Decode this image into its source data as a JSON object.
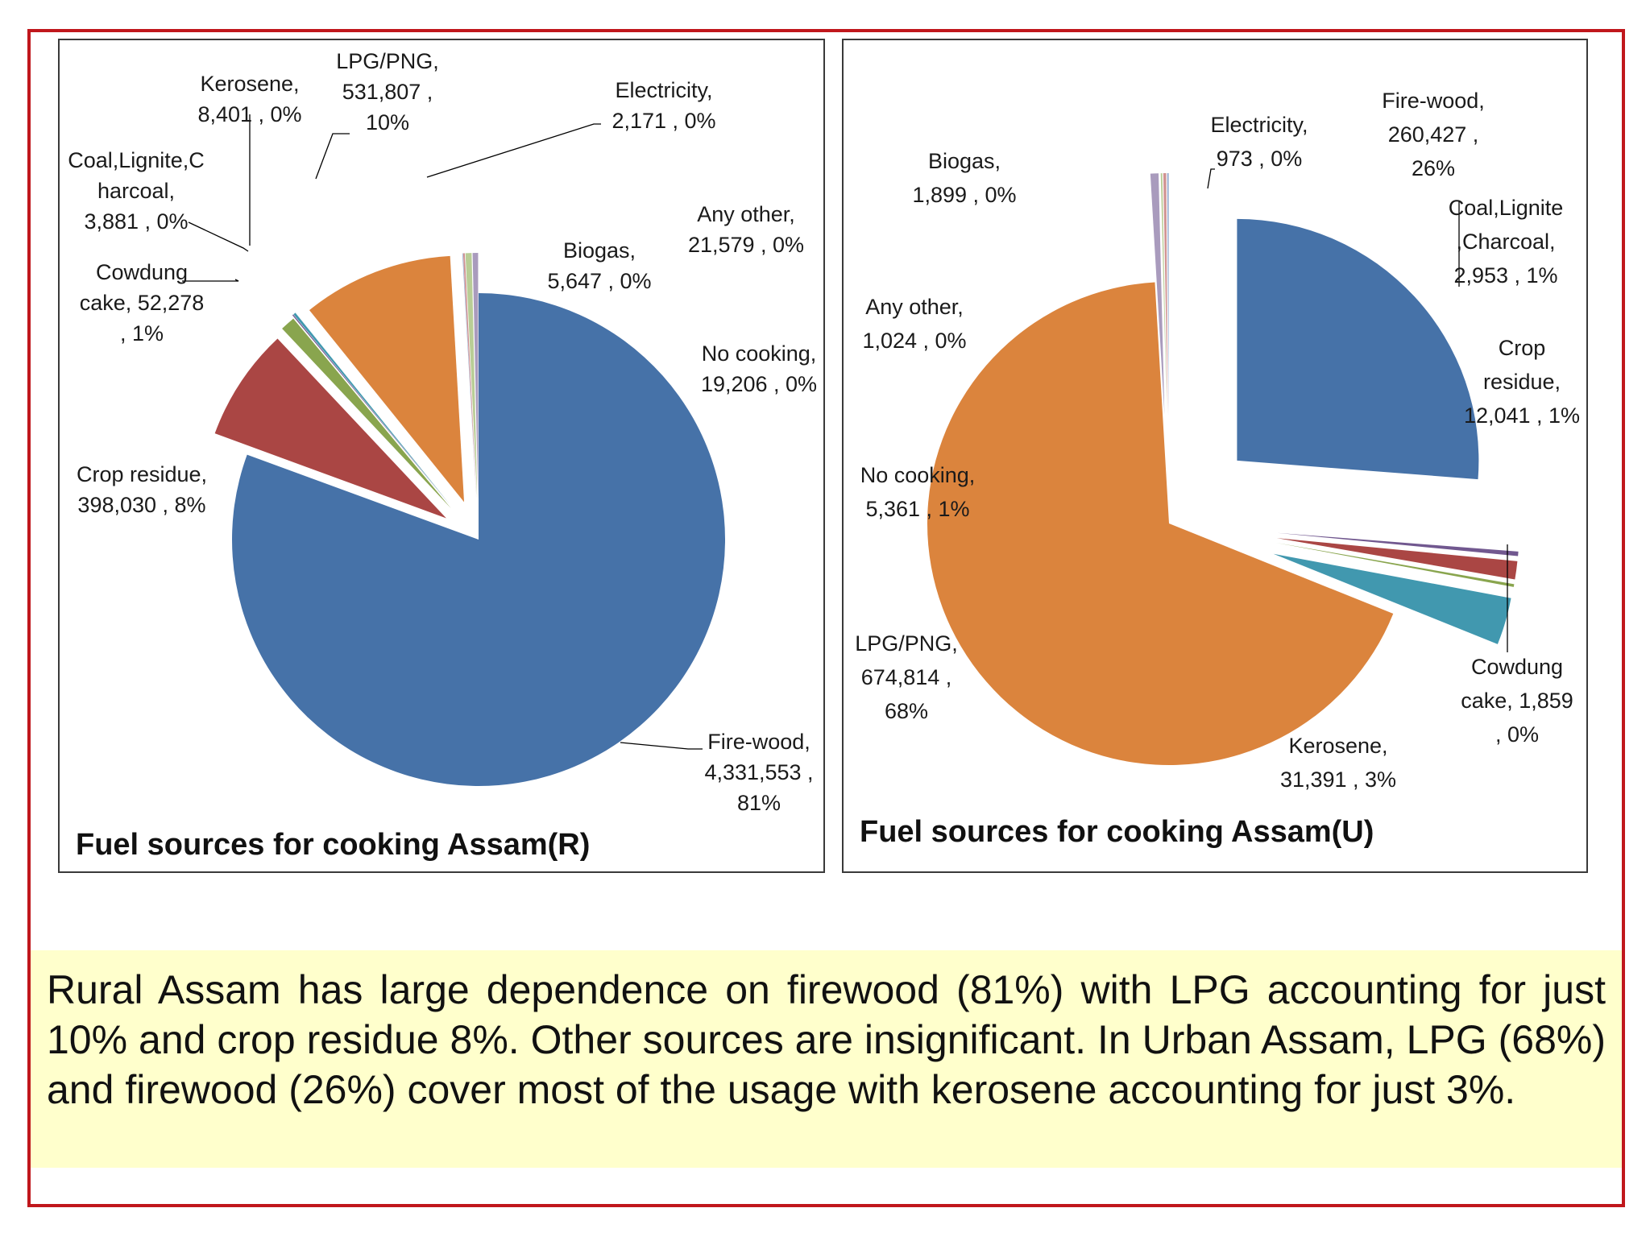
{
  "chart_data": [
    {
      "type": "pie",
      "title": "Fuel sources for cooking Assam(R)",
      "slices": [
        {
          "name": "Fire-wood",
          "value": 4331553,
          "percent": "81%",
          "color": "#4672a8",
          "label": [
            "Fire-wood,",
            "4,331,553 ,",
            "81%"
          ]
        },
        {
          "name": "Crop residue",
          "value": 398030,
          "percent": "8%",
          "color": "#aa4644",
          "label": [
            "Crop residue,",
            "398,030 , 8%"
          ]
        },
        {
          "name": "Cowdung cake",
          "value": 52278,
          "percent": "1%",
          "color": "#89a54e",
          "label": [
            "Cowdung",
            "cake,  52,278",
            ", 1%"
          ]
        },
        {
          "name": "Coal,Lignite,Charcoal",
          "value": 3881,
          "percent": "0%",
          "color": "#71588f",
          "label": [
            "Coal,Lignite,C",
            "harcoal,",
            "3,881 , 0%"
          ]
        },
        {
          "name": "Kerosene",
          "value": 8401,
          "percent": "0%",
          "color": "#4198af",
          "label": [
            "Kerosene,",
            "8,401 , 0%"
          ]
        },
        {
          "name": "LPG/PNG",
          "value": 531807,
          "percent": "10%",
          "color": "#db843d",
          "label": [
            "LPG/PNG,",
            "531,807 ,",
            "10%"
          ]
        },
        {
          "name": "Electricity",
          "value": 2171,
          "percent": "0%",
          "color": "#93a9cf",
          "label": [
            "Electricity,",
            "2,171 , 0%"
          ]
        },
        {
          "name": "Biogas",
          "value": 5647,
          "percent": "0%",
          "color": "#d19392",
          "label": [
            "Biogas,",
            "5,647 , 0%"
          ]
        },
        {
          "name": "Any other",
          "value": 21579,
          "percent": "0%",
          "color": "#b9cd96",
          "label": [
            "Any other,",
            "21,579 , 0%"
          ]
        },
        {
          "name": "No cooking",
          "value": 19206,
          "percent": "0%",
          "color": "#a99bbd",
          "label": [
            "No cooking,",
            "19,206 , 0%"
          ]
        }
      ]
    },
    {
      "type": "pie",
      "title": "Fuel sources for cooking Assam(U)",
      "slices": [
        {
          "name": "Fire-wood",
          "value": 260427,
          "percent": "26%",
          "color": "#4672a8",
          "label": [
            "Fire-wood,",
            "260,427 ,",
            "26%"
          ]
        },
        {
          "name": "Coal,Lignite,Charcoal",
          "value": 2953,
          "percent": "1%",
          "color": "#71588f",
          "label": [
            "Coal,Lignite",
            ",Charcoal,",
            "2,953 , 1%"
          ]
        },
        {
          "name": "Crop residue",
          "value": 12041,
          "percent": "1%",
          "color": "#aa4644",
          "label": [
            "Crop",
            "residue,",
            "12,041 , 1%"
          ]
        },
        {
          "name": "Cowdung cake",
          "value": 1859,
          "percent": "0%",
          "color": "#89a54e",
          "label": [
            "Cowdung",
            "cake,  1,859",
            ", 0%"
          ]
        },
        {
          "name": "Kerosene",
          "value": 31391,
          "percent": "3%",
          "color": "#4198af",
          "label": [
            "Kerosene,",
            "31,391 , 3%"
          ]
        },
        {
          "name": "LPG/PNG",
          "value": 674814,
          "percent": "68%",
          "color": "#db843d",
          "label": [
            "LPG/PNG,",
            "674,814 ,",
            "68%"
          ]
        },
        {
          "name": "No cooking",
          "value": 5361,
          "percent": "1%",
          "color": "#a99bbd",
          "label": [
            "No cooking,",
            "5,361 , 1%"
          ]
        },
        {
          "name": "Any other",
          "value": 1024,
          "percent": "0%",
          "color": "#b9cd96",
          "label": [
            "Any other,",
            "1,024 , 0%"
          ]
        },
        {
          "name": "Biogas",
          "value": 1899,
          "percent": "0%",
          "color": "#d19392",
          "label": [
            "Biogas,",
            "1,899 , 0%"
          ]
        },
        {
          "name": "Electricity",
          "value": 973,
          "percent": "0%",
          "color": "#93a9cf",
          "label": [
            "Electricity,",
            "973 , 0%"
          ]
        }
      ]
    }
  ],
  "summary": "Rural Assam has large dependence on firewood (81%) with LPG accounting for just 10% and crop residue 8%. Other sources are insignificant. In Urban Assam, LPG (68%) and firewood (26%) cover most of the usage with kerosene accounting for just 3%."
}
